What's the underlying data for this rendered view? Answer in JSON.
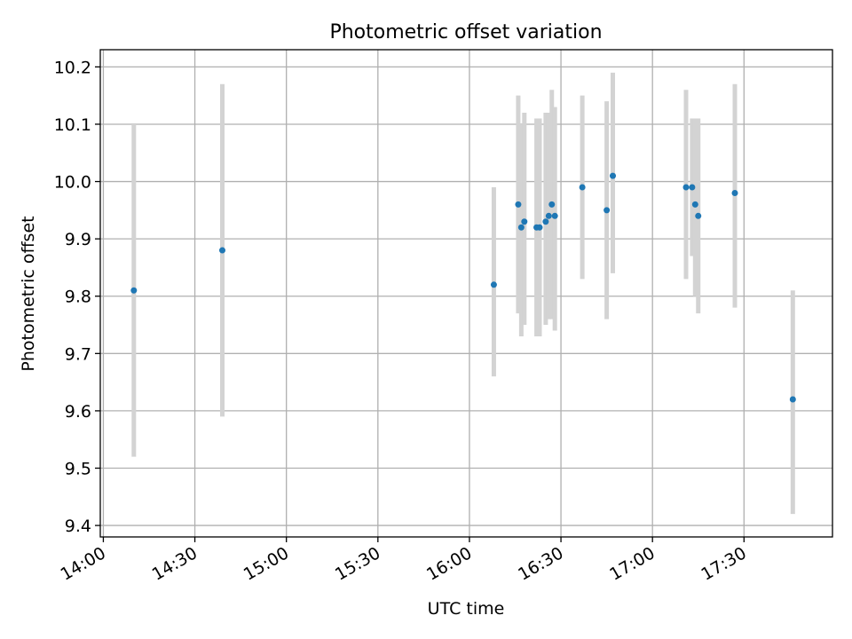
{
  "chart_data": {
    "type": "scatter",
    "title": "Photometric offset variation",
    "xlabel": "UTC time",
    "ylabel": "Photometric offset",
    "x_is_time": true,
    "xlim": [
      "13:59",
      "17:59"
    ],
    "ylim": [
      9.38,
      10.23
    ],
    "x_ticks": [
      "14:00",
      "14:30",
      "15:00",
      "15:30",
      "16:00",
      "16:30",
      "17:00",
      "17:30"
    ],
    "y_ticks": [
      9.4,
      9.5,
      9.6,
      9.7,
      9.8,
      9.9,
      10.0,
      10.1,
      10.2
    ],
    "grid": true,
    "legend": "none",
    "colors": {
      "points": "#1f77b4",
      "error_bars": "#d3d3d3",
      "grid": "#b0b0b0"
    },
    "series": [
      {
        "points": [
          {
            "x": "14:10",
            "y": 9.81,
            "ylow": 9.52,
            "yhigh": 10.1
          },
          {
            "x": "14:39",
            "y": 9.88,
            "ylow": 9.59,
            "yhigh": 10.17
          },
          {
            "x": "16:08",
            "y": 9.82,
            "ylow": 9.66,
            "yhigh": 9.99
          },
          {
            "x": "16:16",
            "y": 9.96,
            "ylow": 9.77,
            "yhigh": 10.15
          },
          {
            "x": "16:17",
            "y": 9.92,
            "ylow": 9.73,
            "yhigh": 10.1
          },
          {
            "x": "16:18",
            "y": 9.93,
            "ylow": 9.75,
            "yhigh": 10.12
          },
          {
            "x": "16:22",
            "y": 9.92,
            "ylow": 9.73,
            "yhigh": 10.11
          },
          {
            "x": "16:23",
            "y": 9.92,
            "ylow": 9.73,
            "yhigh": 10.11
          },
          {
            "x": "16:25",
            "y": 9.93,
            "ylow": 9.75,
            "yhigh": 10.12
          },
          {
            "x": "16:26",
            "y": 9.94,
            "ylow": 9.76,
            "yhigh": 10.12
          },
          {
            "x": "16:27",
            "y": 9.96,
            "ylow": 9.76,
            "yhigh": 10.16
          },
          {
            "x": "16:28",
            "y": 9.94,
            "ylow": 9.74,
            "yhigh": 10.13
          },
          {
            "x": "16:37",
            "y": 9.99,
            "ylow": 9.83,
            "yhigh": 10.15
          },
          {
            "x": "16:45",
            "y": 9.95,
            "ylow": 9.76,
            "yhigh": 10.14
          },
          {
            "x": "16:47",
            "y": 10.01,
            "ylow": 9.84,
            "yhigh": 10.19
          },
          {
            "x": "17:11",
            "y": 9.99,
            "ylow": 9.83,
            "yhigh": 10.16
          },
          {
            "x": "17:13",
            "y": 9.99,
            "ylow": 9.87,
            "yhigh": 10.11
          },
          {
            "x": "17:14",
            "y": 9.96,
            "ylow": 9.8,
            "yhigh": 10.11
          },
          {
            "x": "17:15",
            "y": 9.94,
            "ylow": 9.77,
            "yhigh": 10.11
          },
          {
            "x": "17:27",
            "y": 9.98,
            "ylow": 9.78,
            "yhigh": 10.17
          },
          {
            "x": "17:46",
            "y": 9.62,
            "ylow": 9.42,
            "yhigh": 9.81
          }
        ]
      }
    ]
  }
}
